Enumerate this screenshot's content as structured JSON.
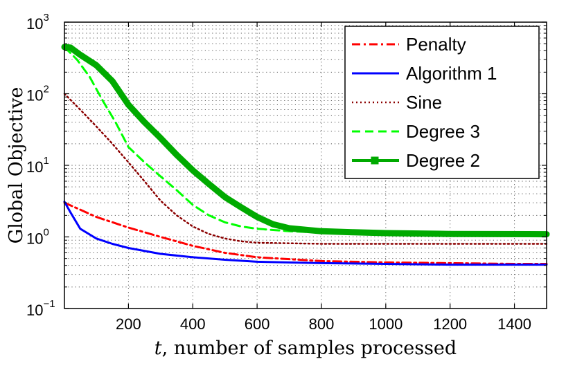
{
  "chart_data": {
    "type": "line",
    "title": "",
    "xlabel_italic": "t",
    "xlabel_rest": ", number of samples processed",
    "ylabel": "Global Objective",
    "xlim": [
      1,
      1500
    ],
    "ylim": [
      0.1,
      1000
    ],
    "yscale": "log",
    "grid": true,
    "x_ticks": [
      200,
      400,
      600,
      800,
      1000,
      1200,
      1400
    ],
    "y_ticks": [
      {
        "value": 0.1,
        "base": "10",
        "exp": "−1"
      },
      {
        "value": 1,
        "base": "10",
        "exp": "0"
      },
      {
        "value": 10,
        "base": "10",
        "exp": "1"
      },
      {
        "value": 100,
        "base": "10",
        "exp": "2"
      },
      {
        "value": 1000,
        "base": "10",
        "exp": "3"
      }
    ],
    "legend_position": "top-right",
    "series": [
      {
        "name": "Penalty",
        "color": "#ff0000",
        "style": "dashdot",
        "x": [
          1,
          50,
          100,
          200,
          300,
          400,
          500,
          600,
          800,
          1000,
          1200,
          1400,
          1500
        ],
        "y": [
          3.0,
          2.4,
          1.9,
          1.35,
          1.0,
          0.75,
          0.6,
          0.52,
          0.46,
          0.44,
          0.43,
          0.42,
          0.42
        ]
      },
      {
        "name": "Algorithm 1",
        "color": "#0000ff",
        "style": "solid",
        "x": [
          1,
          20,
          50,
          100,
          150,
          200,
          300,
          400,
          500,
          600,
          800,
          1000,
          1200,
          1400,
          1500
        ],
        "y": [
          3.1,
          2.2,
          1.3,
          0.95,
          0.8,
          0.7,
          0.58,
          0.52,
          0.48,
          0.45,
          0.43,
          0.42,
          0.41,
          0.41,
          0.41
        ]
      },
      {
        "name": "Sine",
        "color": "#8b0000",
        "style": "dotted",
        "x": [
          1,
          50,
          100,
          150,
          200,
          250,
          300,
          350,
          400,
          450,
          500,
          550,
          600,
          800,
          1000,
          1500
        ],
        "y": [
          100,
          60,
          35,
          20,
          11,
          6,
          3.2,
          2.0,
          1.4,
          1.1,
          0.95,
          0.87,
          0.83,
          0.8,
          0.8,
          0.8
        ]
      },
      {
        "name": "Degree 3",
        "color": "#00ff00",
        "style": "dashed",
        "x": [
          1,
          40,
          80,
          120,
          160,
          200,
          250,
          300,
          350,
          400,
          450,
          500,
          550,
          600,
          650,
          700,
          800,
          1000,
          1500
        ],
        "y": [
          450,
          300,
          170,
          80,
          40,
          18,
          11,
          7,
          4.5,
          2.8,
          2.0,
          1.6,
          1.4,
          1.3,
          1.25,
          1.2,
          1.15,
          1.12,
          1.1
        ]
      },
      {
        "name": "Degree 2",
        "color": "#00aa00",
        "style": "solid-square",
        "x": [
          1,
          20,
          50,
          100,
          150,
          200,
          250,
          300,
          350,
          400,
          450,
          500,
          550,
          600,
          650,
          700,
          800,
          900,
          1000,
          1200,
          1500
        ],
        "y": [
          450,
          440,
          350,
          250,
          150,
          70,
          40,
          24,
          14,
          8.5,
          5.5,
          3.6,
          2.6,
          1.9,
          1.5,
          1.32,
          1.2,
          1.16,
          1.13,
          1.1,
          1.09
        ]
      }
    ]
  }
}
